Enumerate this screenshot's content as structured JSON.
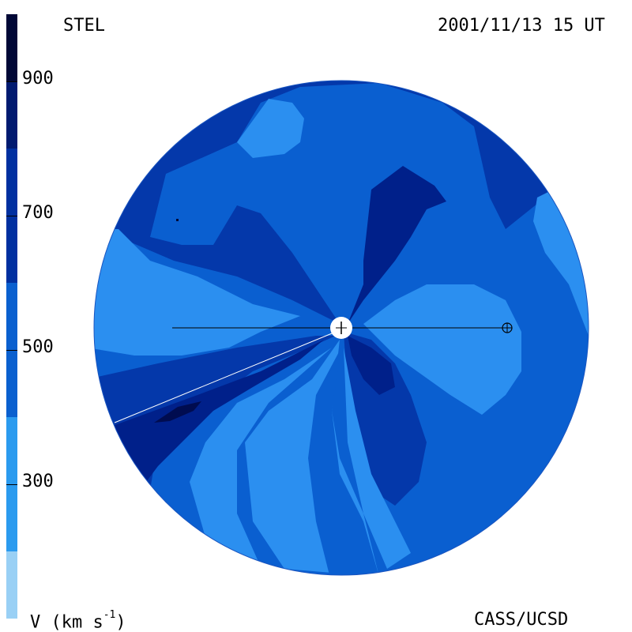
{
  "observatory": "STEL",
  "timestamp": "2001/11/13 15 UT",
  "credit": "CASS/UCSD",
  "colorbar": {
    "label_prefix": "V (km s",
    "label_exp": "-1",
    "label_suffix": ")",
    "ticks": [
      "900",
      "700",
      "500",
      "300"
    ],
    "tick_values": [
      900,
      700,
      500,
      300
    ],
    "min": 100,
    "max": 1000,
    "levels": [
      {
        "from": 100,
        "to": 200,
        "color": "#99d0f5"
      },
      {
        "from": 200,
        "to": 400,
        "color": "#2b9bef"
      },
      {
        "from": 400,
        "to": 600,
        "color": "#0a60cf"
      },
      {
        "from": 600,
        "to": 800,
        "color": "#0030a0"
      },
      {
        "from": 800,
        "to": 900,
        "color": "#001a70"
      },
      {
        "from": 900,
        "to": 1000,
        "color": "#000836"
      }
    ]
  },
  "colors": {
    "v300": "#2b8ff0",
    "v400": "#1f75e0",
    "v500": "#0a5fd0",
    "v600": "#0438aa",
    "v700": "#00208a",
    "v800": "#000c50",
    "sun": "#ffffff",
    "line": "#000000",
    "white_line": "#ffffff"
  },
  "symbols": {
    "sun": "sun-disk",
    "earth": "earth-symbol"
  }
}
